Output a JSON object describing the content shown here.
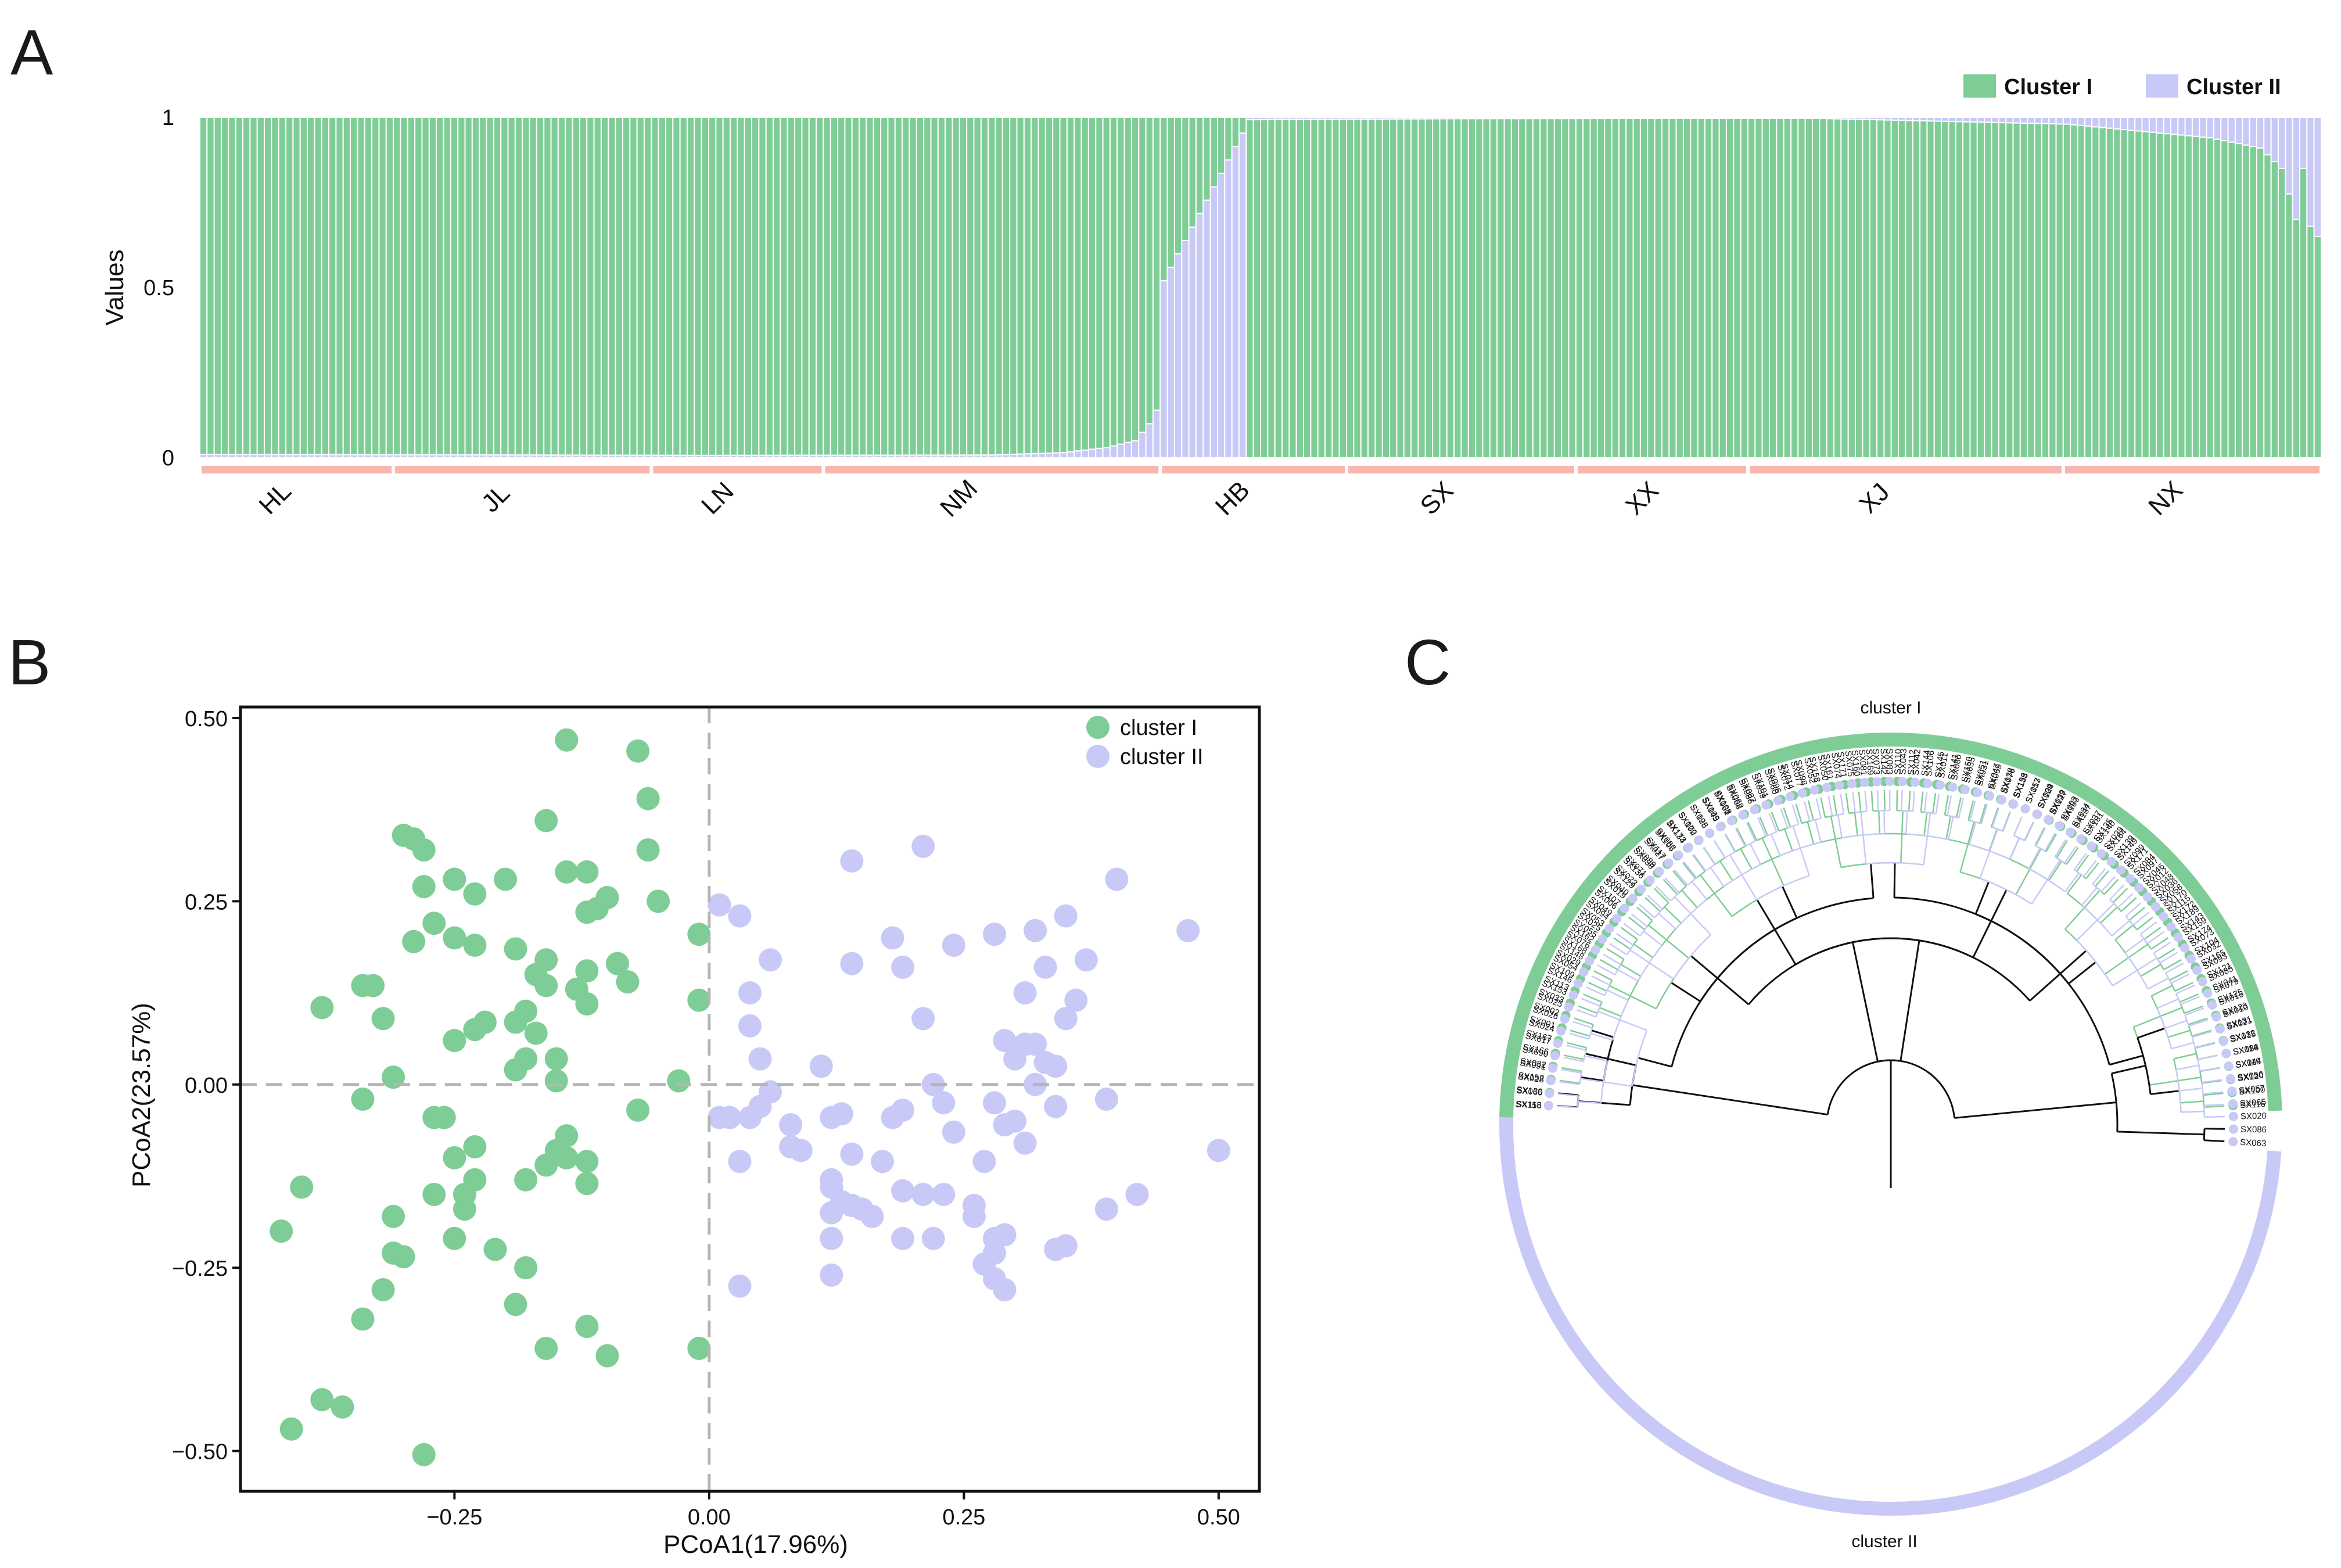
{
  "panels": {
    "A": {
      "letter": "A"
    },
    "B": {
      "letter": "B"
    },
    "C": {
      "letter": "C"
    }
  },
  "chart_data": [
    {
      "panel": "A",
      "type": "bar",
      "stacked": true,
      "ylabel": "Values",
      "xlabel": "",
      "ylim": [
        0,
        1
      ],
      "yticks": [
        "0",
        "0.5",
        "1"
      ],
      "legend": {
        "placement": "top-right",
        "entries": [
          "Cluster I",
          "Cluster II"
        ]
      },
      "colors": {
        "Cluster I": "#7fcd96",
        "Cluster II": "#c9c9f7",
        "population_bar": "#f8b7ae"
      },
      "populations": [
        {
          "name": "HL",
          "count": 27
        },
        {
          "name": "JL",
          "count": 36
        },
        {
          "name": "LN",
          "count": 24
        },
        {
          "name": "NM",
          "count": 47
        },
        {
          "name": "HB",
          "count": 26
        },
        {
          "name": "SX",
          "count": 32
        },
        {
          "name": "XX",
          "count": 24
        },
        {
          "name": "XJ",
          "count": 44
        },
        {
          "name": "NX",
          "count": 36
        }
      ],
      "cluster_I_profile": {
        "description_points": [
          [
            0,
            0.99
          ],
          [
            70,
            0.993
          ],
          [
            110,
            0.992
          ],
          [
            120,
            0.985
          ],
          [
            126,
            0.97
          ],
          [
            130,
            0.95
          ],
          [
            132,
            0.9
          ],
          [
            133,
            0.86
          ],
          [
            134,
            0.48
          ],
          [
            146,
            0.007
          ],
          [
            175,
            0.004
          ],
          [
            225,
            0.003
          ],
          [
            260,
            0.02
          ],
          [
            280,
            0.06
          ],
          [
            287,
            0.09
          ],
          [
            290,
            0.15
          ],
          [
            292,
            0.3
          ],
          [
            293,
            0.36
          ]
        ]
      }
    },
    {
      "panel": "B",
      "type": "scatter",
      "xlabel": "PCoA1(17.96%)",
      "ylabel": "PCoA2(23.57%)",
      "xlim": [
        -0.46,
        0.54
      ],
      "ylim": [
        -0.555,
        0.515
      ],
      "xticks": [
        "−0.25",
        "0.00",
        "0.25",
        "0.50"
      ],
      "yticks": [
        "−0.50",
        "−0.25",
        "0.00",
        "0.25",
        "0.50"
      ],
      "legend": {
        "placement": "top-right",
        "entries": [
          "cluster I",
          "cluster II"
        ]
      },
      "colors": {
        "cluster I": "#7fcd96",
        "cluster II": "#c9c9f7"
      },
      "series": [
        {
          "name": "cluster I",
          "points": [
            [
              -0.14,
              0.47
            ],
            [
              -0.07,
              0.455
            ],
            [
              -0.06,
              0.39
            ],
            [
              -0.16,
              0.36
            ],
            [
              -0.3,
              0.34
            ],
            [
              -0.29,
              0.335
            ],
            [
              -0.28,
              0.32
            ],
            [
              -0.06,
              0.32
            ],
            [
              -0.14,
              0.29
            ],
            [
              -0.12,
              0.29
            ],
            [
              -0.25,
              0.28
            ],
            [
              -0.2,
              0.28
            ],
            [
              -0.23,
              0.26
            ],
            [
              -0.1,
              0.255
            ],
            [
              -0.11,
              0.24
            ],
            [
              -0.12,
              0.235
            ],
            [
              -0.05,
              0.25
            ],
            [
              -0.28,
              0.27
            ],
            [
              -0.27,
              0.22
            ],
            [
              -0.29,
              0.195
            ],
            [
              -0.23,
              0.19
            ],
            [
              -0.19,
              0.185
            ],
            [
              -0.25,
              0.2
            ],
            [
              -0.01,
              0.205
            ],
            [
              -0.16,
              0.17
            ],
            [
              -0.17,
              0.15
            ],
            [
              -0.12,
              0.155
            ],
            [
              -0.09,
              0.165
            ],
            [
              -0.16,
              0.135
            ],
            [
              -0.33,
              0.135
            ],
            [
              -0.34,
              0.135
            ],
            [
              -0.08,
              0.14
            ],
            [
              -0.13,
              0.13
            ],
            [
              -0.38,
              0.105
            ],
            [
              -0.18,
              0.1
            ],
            [
              -0.12,
              0.11
            ],
            [
              -0.01,
              0.115
            ],
            [
              -0.22,
              0.085
            ],
            [
              -0.19,
              0.085
            ],
            [
              -0.32,
              0.09
            ],
            [
              -0.23,
              0.075
            ],
            [
              -0.17,
              0.07
            ],
            [
              -0.25,
              0.06
            ],
            [
              -0.18,
              0.035
            ],
            [
              -0.19,
              0.02
            ],
            [
              -0.15,
              0.035
            ],
            [
              -0.31,
              0.01
            ],
            [
              -0.15,
              0.005
            ],
            [
              -0.03,
              0.005
            ],
            [
              -0.34,
              -0.02
            ],
            [
              -0.07,
              -0.035
            ],
            [
              -0.27,
              -0.045
            ],
            [
              -0.26,
              -0.045
            ],
            [
              -0.14,
              -0.07
            ],
            [
              -0.15,
              -0.09
            ],
            [
              -0.14,
              -0.1
            ],
            [
              -0.12,
              -0.105
            ],
            [
              -0.23,
              -0.085
            ],
            [
              -0.25,
              -0.1
            ],
            [
              -0.23,
              -0.13
            ],
            [
              -0.24,
              -0.15
            ],
            [
              -0.27,
              -0.15
            ],
            [
              -0.18,
              -0.13
            ],
            [
              -0.12,
              -0.135
            ],
            [
              -0.16,
              -0.11
            ],
            [
              -0.4,
              -0.14
            ],
            [
              -0.31,
              -0.18
            ],
            [
              -0.24,
              -0.17
            ],
            [
              -0.25,
              -0.21
            ],
            [
              -0.21,
              -0.225
            ],
            [
              -0.42,
              -0.2
            ],
            [
              -0.31,
              -0.23
            ],
            [
              -0.3,
              -0.235
            ],
            [
              -0.18,
              -0.25
            ],
            [
              -0.32,
              -0.28
            ],
            [
              -0.19,
              -0.3
            ],
            [
              -0.34,
              -0.32
            ],
            [
              -0.12,
              -0.33
            ],
            [
              -0.16,
              -0.36
            ],
            [
              -0.1,
              -0.37
            ],
            [
              -0.01,
              -0.36
            ],
            [
              -0.38,
              -0.43
            ],
            [
              -0.36,
              -0.44
            ],
            [
              -0.41,
              -0.47
            ],
            [
              -0.28,
              -0.505
            ]
          ]
        },
        {
          "name": "cluster II",
          "points": [
            [
              0.21,
              0.325
            ],
            [
              0.14,
              0.305
            ],
            [
              0.4,
              0.28
            ],
            [
              0.01,
              0.245
            ],
            [
              0.03,
              0.23
            ],
            [
              0.35,
              0.23
            ],
            [
              0.32,
              0.21
            ],
            [
              0.47,
              0.21
            ],
            [
              0.28,
              0.205
            ],
            [
              0.18,
              0.2
            ],
            [
              0.24,
              0.19
            ],
            [
              0.06,
              0.17
            ],
            [
              0.14,
              0.165
            ],
            [
              0.37,
              0.17
            ],
            [
              0.19,
              0.16
            ],
            [
              0.33,
              0.16
            ],
            [
              0.04,
              0.125
            ],
            [
              0.31,
              0.125
            ],
            [
              0.36,
              0.115
            ],
            [
              0.21,
              0.09
            ],
            [
              0.35,
              0.09
            ],
            [
              0.04,
              0.08
            ],
            [
              0.29,
              0.06
            ],
            [
              0.31,
              0.055
            ],
            [
              0.32,
              0.055
            ],
            [
              0.3,
              0.035
            ],
            [
              0.33,
              0.03
            ],
            [
              0.05,
              0.035
            ],
            [
              0.11,
              0.025
            ],
            [
              0.34,
              0.025
            ],
            [
              0.22,
              0.0
            ],
            [
              0.32,
              0.0
            ],
            [
              0.06,
              -0.01
            ],
            [
              0.05,
              -0.03
            ],
            [
              0.23,
              -0.025
            ],
            [
              0.28,
              -0.025
            ],
            [
              0.34,
              -0.03
            ],
            [
              0.19,
              -0.035
            ],
            [
              0.13,
              -0.04
            ],
            [
              0.18,
              -0.045
            ],
            [
              0.12,
              -0.045
            ],
            [
              0.04,
              -0.045
            ],
            [
              0.01,
              -0.045
            ],
            [
              0.02,
              -0.045
            ],
            [
              0.39,
              -0.02
            ],
            [
              0.3,
              -0.05
            ],
            [
              0.29,
              -0.055
            ],
            [
              0.08,
              -0.055
            ],
            [
              0.24,
              -0.065
            ],
            [
              0.31,
              -0.08
            ],
            [
              0.08,
              -0.085
            ],
            [
              0.09,
              -0.09
            ],
            [
              0.14,
              -0.095
            ],
            [
              0.5,
              -0.09
            ],
            [
              0.03,
              -0.105
            ],
            [
              0.17,
              -0.105
            ],
            [
              0.27,
              -0.105
            ],
            [
              0.12,
              -0.13
            ],
            [
              0.12,
              -0.14
            ],
            [
              0.19,
              -0.145
            ],
            [
              0.23,
              -0.15
            ],
            [
              0.21,
              -0.15
            ],
            [
              0.13,
              -0.16
            ],
            [
              0.26,
              -0.165
            ],
            [
              0.14,
              -0.165
            ],
            [
              0.15,
              -0.17
            ],
            [
              0.42,
              -0.15
            ],
            [
              0.39,
              -0.17
            ],
            [
              0.12,
              -0.175
            ],
            [
              0.26,
              -0.18
            ],
            [
              0.16,
              -0.18
            ],
            [
              0.12,
              -0.21
            ],
            [
              0.19,
              -0.21
            ],
            [
              0.22,
              -0.21
            ],
            [
              0.28,
              -0.21
            ],
            [
              0.29,
              -0.205
            ],
            [
              0.35,
              -0.22
            ],
            [
              0.34,
              -0.225
            ],
            [
              0.28,
              -0.23
            ],
            [
              0.27,
              -0.245
            ],
            [
              0.12,
              -0.26
            ],
            [
              0.03,
              -0.275
            ],
            [
              0.28,
              -0.265
            ],
            [
              0.29,
              -0.28
            ]
          ]
        }
      ]
    },
    {
      "panel": "C",
      "type": "circular-dendrogram",
      "groups": [
        "cluster I",
        "cluster II"
      ],
      "colors": {
        "cluster I": "#7fcd96",
        "cluster II": "#c9c9f7",
        "branch": "#111111"
      },
      "cluster_I_leaves": [
        "SX116",
        "SX100",
        "SX120",
        "SX119",
        "SX114",
        "SX132",
        "SX131",
        "SX123",
        "SX125",
        "SX041",
        "SX121",
        "SX165",
        "SX104",
        "SX174",
        "SX143",
        "SX172",
        "SX170",
        "SX036",
        "SX012",
        "SX097",
        "SX171",
        "SX149",
        "SX164",
        "SX140",
        "SX181",
        "SX137",
        "SX183",
        "SX127",
        "SX124",
        "SX157",
        "SX156",
        "SX138",
        "SX047",
        "SX051",
        "SX150",
        "SX141",
        "SX145",
        "SX144",
        "SX112",
        "SX110",
        "SX142",
        "SX169",
        "SX160",
        "SX171",
        "SX161",
        "SX158",
        "SX098",
        "SX014",
        "SX096",
        "SX101",
        "SX087",
        "SX062",
        "SX108",
        "SX109",
        "SX128",
        "SX102",
        "SX134",
        "SX105",
        "SX027",
        "SX030",
        "SX136",
        "SX129",
        "SX019",
        "SX006",
        "SX094",
        "SX025",
        "SX162",
        "SX168",
        "SX029",
        "SX109",
        "SX113",
        "SX033",
        "SX002",
        "SX001",
        "SX167",
        "SX166",
        "SX032",
        "SX152",
        "SX130",
        "SX118"
      ],
      "cluster_II_leaves": [
        "SX155",
        "SX066",
        "SX028",
        "SX091",
        "SX090",
        "SX017",
        "SX024",
        "SX026",
        "SX025",
        "SX153",
        "SX146",
        "SX054",
        "SX148",
        "SX076",
        "SX055",
        "SX053",
        "SX049",
        "SX107",
        "SX040",
        "SX022",
        "SX071",
        "SX089",
        "SX117",
        "SX082",
        "SX173",
        "SX070",
        "SX095",
        "SX045",
        "SX061",
        "SX068",
        "SX086",
        "SX059",
        "SX060",
        "SX072",
        "SX077",
        "SX052",
        "SX050",
        "SX074",
        "SX075",
        "SX081",
        "SX073",
        "SX083",
        "SX043",
        "SX042",
        "SX106",
        "SX011",
        "SX080",
        "SX035",
        "SX031",
        "SX069",
        "SX078",
        "SX133",
        "SX013",
        "SX009",
        "SX039",
        "SX003",
        "SX034",
        "SX037",
        "SX135",
        "SX038",
        "SX139",
        "SX099",
        "SX084",
        "SX046",
        "SX048",
        "SX058",
        "SX115",
        "SX189",
        "SX159",
        "SX073",
        "SX032",
        "SX093",
        "SX085",
        "SX079",
        "SX016",
        "SX010",
        "SX021",
        "SX015",
        "SX088",
        "SX044",
        "SX056",
        "SX057",
        "SX065",
        "SX020",
        "SX086",
        "SX063"
      ]
    }
  ]
}
